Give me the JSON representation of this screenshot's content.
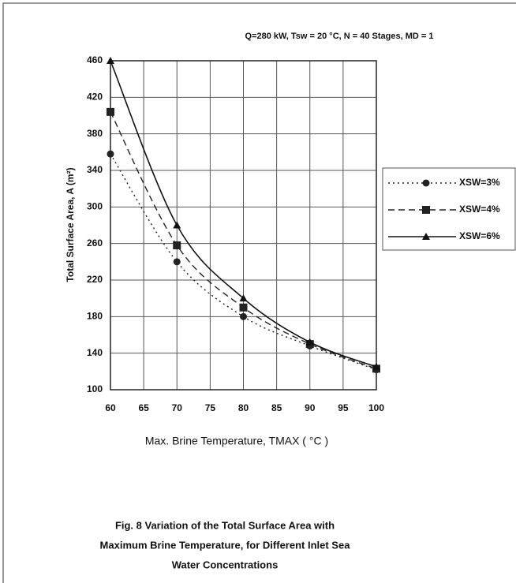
{
  "chart_data": {
    "type": "line",
    "title": "Q=280 kW, Tsw = 20 °C, N = 40 Stages, MD = 1",
    "x_label": "Max. Brine Temperature, TMAX ( °C )",
    "y_label": "Total Surface Area, A (m²)",
    "caption": [
      "Fig. 8 Variation of the Total Surface Area  with",
      "Maximum Brine Temperature, for Different Inlet Sea",
      "Water Concentrations"
    ],
    "x": [
      60,
      70,
      80,
      90,
      100
    ],
    "series": [
      {
        "name": "XSW=3%",
        "color": "#222222",
        "dash": "dotted",
        "marker": "circle",
        "values": [
          358,
          240,
          180,
          148,
          122
        ]
      },
      {
        "name": "XSW=4%",
        "color": "#222222",
        "dash": "dashed",
        "marker": "square",
        "values": [
          404,
          258,
          190,
          150,
          123
        ]
      },
      {
        "name": "XSW=6%",
        "color": "#111111",
        "dash": "solid",
        "marker": "triangle",
        "values": [
          460,
          280,
          200,
          152,
          125
        ]
      }
    ],
    "xlim": [
      60,
      100
    ],
    "xticks": [
      60,
      65,
      70,
      75,
      80,
      85,
      90,
      95,
      100
    ],
    "ylim": [
      100,
      460
    ],
    "yticks": [
      100,
      140,
      180,
      220,
      260,
      300,
      340,
      380,
      420,
      460
    ],
    "grid": true,
    "legend": "right"
  }
}
